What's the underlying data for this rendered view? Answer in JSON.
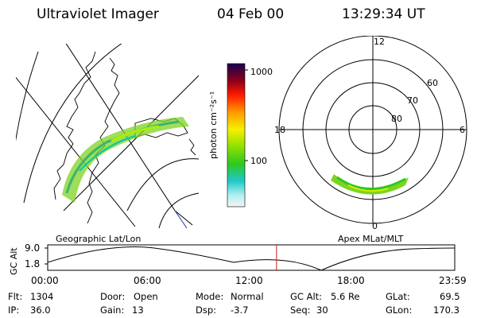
{
  "header": {
    "instrument": "Ultraviolet Imager",
    "date": "04 Feb 00",
    "time": "13:29:34 UT"
  },
  "colorbar": {
    "unit_label": "photon cm⁻²s⁻¹",
    "tick_high": "1000",
    "tick_low": "100"
  },
  "polar_plot": {
    "label_12": "12",
    "label_18": "18",
    "label_6": "6",
    "label_0": "0",
    "lat_60": "60",
    "lat_70": "70",
    "lat_80": "80"
  },
  "panel_labels": {
    "geographic": "Geographic Lat/Lon",
    "apex": "Apex MLat/MLT"
  },
  "altitude_plot": {
    "axis_label": "GC Alt",
    "y_high": "9.0",
    "y_low": "1.8",
    "time_ticks": [
      "00:00",
      "06:00",
      "12:00",
      "18:00",
      "23:59"
    ],
    "current_time_fraction": 0.5622
  },
  "info": {
    "flt_label": "Flt:",
    "flt_value": "1304",
    "ip_label": "IP:",
    "ip_value": "36.0",
    "door_label": "Door:",
    "door_value": "Open",
    "gain_label": "Gain:",
    "gain_value": "13",
    "mode_label": "Mode:",
    "mode_value": "Normal",
    "dsp_label": "Dsp:",
    "dsp_value": "-3.7",
    "gcalt_label": "GC Alt:",
    "gcalt_value": "5.6 Re",
    "seq_label": "Seq:",
    "seq_value": "30",
    "glat_label": "GLat:",
    "glat_value": "69.5",
    "glon_label": "GLon:",
    "glon_value": "170.3"
  },
  "colors": {
    "marker": "#cc2222",
    "trajectory": "#000000"
  }
}
